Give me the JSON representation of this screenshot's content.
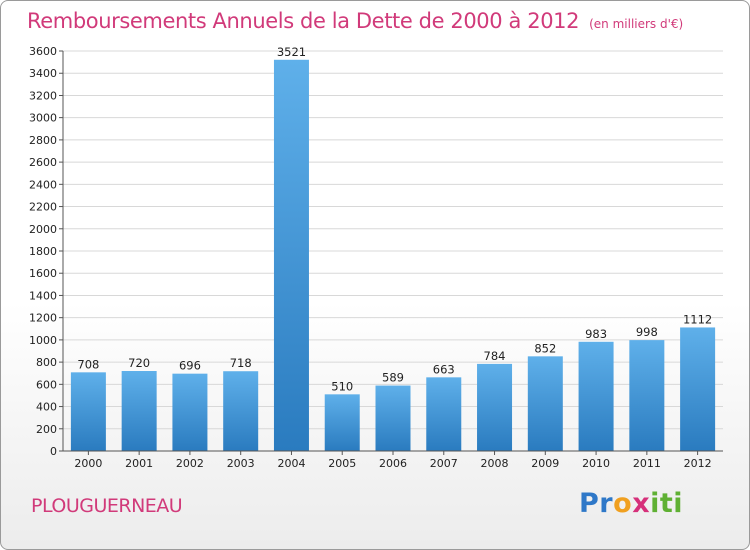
{
  "header": {
    "title": "Remboursements Annuels de la Dette de 2000 à 2012",
    "subtitle": "(en milliers d'€)"
  },
  "footer": {
    "commune": "PLOUGUERNEAU",
    "logo_letters": [
      "P",
      "r",
      "o",
      "x",
      "i",
      "t",
      "i"
    ]
  },
  "colors": {
    "title": "#d13a7a",
    "bar_top": "#5fb0ea",
    "bar_bottom": "#2a7bbf"
  },
  "chart_data": {
    "type": "bar",
    "title": "Remboursements Annuels de la Dette de 2000 à 2012",
    "xlabel": "",
    "ylabel": "",
    "categories": [
      "2000",
      "2001",
      "2002",
      "2003",
      "2004",
      "2005",
      "2006",
      "2007",
      "2008",
      "2009",
      "2010",
      "2011",
      "2012"
    ],
    "values": [
      708,
      720,
      696,
      718,
      3521,
      510,
      589,
      663,
      784,
      852,
      983,
      998,
      1112
    ],
    "ylim": [
      0,
      3600
    ],
    "yticks": [
      0,
      200,
      400,
      600,
      800,
      1000,
      1200,
      1400,
      1600,
      1800,
      2000,
      2200,
      2400,
      2600,
      2800,
      3000,
      3200,
      3400,
      3600
    ],
    "grid": true,
    "legend": "none"
  }
}
